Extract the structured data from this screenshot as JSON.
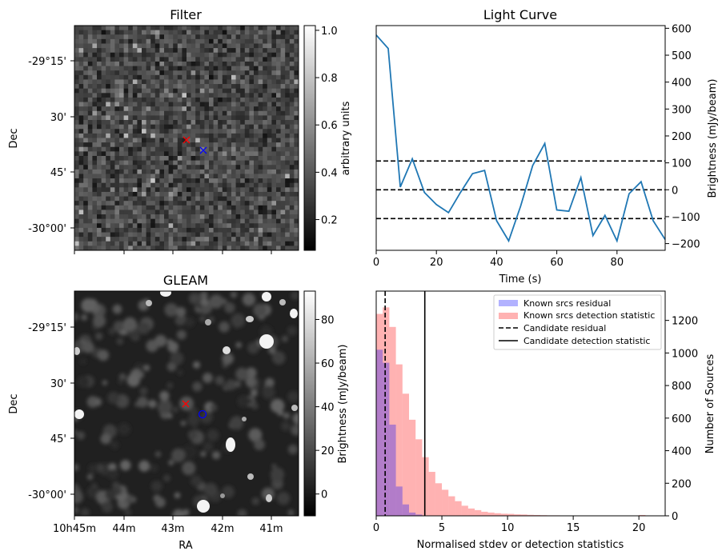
{
  "filter_panel": {
    "title": "Filter",
    "ylabel": "Dec",
    "dec_ticks": [
      "-29°15'",
      "30'",
      "45'",
      "-30°00'"
    ],
    "colorbar": {
      "label": "arbitrary units",
      "ticks": [
        "0.2",
        "0.4",
        "0.6",
        "0.8",
        "1.0"
      ],
      "range": [
        0.07,
        1.02
      ]
    },
    "markers": [
      {
        "symbol": "x",
        "color": "#ff0000"
      },
      {
        "symbol": "x",
        "color": "#0000ff"
      }
    ]
  },
  "gleam_panel": {
    "title": "GLEAM",
    "ylabel": "Dec",
    "xlabel": "RA",
    "dec_ticks": [
      "-29°15'",
      "30'",
      "45'",
      "-30°00'"
    ],
    "ra_ticks": [
      "10h45m",
      "44m",
      "43m",
      "42m",
      "41m"
    ],
    "colorbar": {
      "label": "Brightness (mJy/beam)",
      "ticks": [
        "0",
        "20",
        "40",
        "60",
        "80"
      ],
      "range": [
        -10,
        93
      ]
    },
    "markers": [
      {
        "symbol": "x",
        "color": "#ff0000"
      },
      {
        "symbol": "o",
        "color": "#0000ff"
      }
    ]
  },
  "chart_data": [
    {
      "type": "line",
      "title": "Light Curve",
      "xlabel": "Time (s)",
      "ylabel": "Brightness (mJy/beam)",
      "xlim": [
        0,
        96
      ],
      "ylim": [
        -225,
        610
      ],
      "xticks": [
        0,
        20,
        40,
        60,
        80
      ],
      "yticks": [
        -200,
        -100,
        0,
        100,
        200,
        300,
        400,
        500,
        600
      ],
      "color": "#1f77b4",
      "x": [
        0,
        4,
        8,
        12,
        16,
        20,
        24,
        28,
        32,
        36,
        40,
        44,
        48,
        52,
        56,
        60,
        64,
        68,
        72,
        76,
        80,
        84,
        88,
        92,
        96
      ],
      "y": [
        575,
        525,
        10,
        115,
        -10,
        -55,
        -85,
        -10,
        60,
        72,
        -115,
        -190,
        -60,
        90,
        172,
        -75,
        -80,
        45,
        -170,
        -95,
        -190,
        -15,
        30,
        -115,
        -185
      ],
      "hlines": [
        107,
        0,
        -107
      ]
    },
    {
      "type": "bar",
      "xlabel": "Normalised stdev or detection statistics",
      "ylabel": "Number of Sources",
      "xlim": [
        0,
        22
      ],
      "ylim": [
        0,
        1380
      ],
      "xticks": [
        0,
        5,
        10,
        15,
        20
      ],
      "yticks": [
        0,
        200,
        400,
        600,
        800,
        1000,
        1200
      ],
      "bin_width": 0.5,
      "series": [
        {
          "name": "Known srcs residual",
          "color": "#0000ff",
          "alpha": 0.3,
          "bin_starts": [
            0,
            0.5,
            1.0,
            1.5,
            2.0,
            2.5,
            3.0
          ],
          "values": [
            1020,
            940,
            560,
            180,
            70,
            20,
            8
          ]
        },
        {
          "name": "Known srcs detection statistic",
          "color": "#ff0000",
          "alpha": 0.3,
          "bin_starts": [
            0,
            0.5,
            1.0,
            1.5,
            2.0,
            2.5,
            3.0,
            3.5,
            4.0,
            4.5,
            5.0,
            5.5,
            6.0,
            6.5,
            7.0,
            7.5,
            8.0,
            8.5,
            9.0,
            9.5,
            10.0,
            10.5,
            11.0,
            11.5,
            12.0,
            12.5,
            13.0,
            13.5,
            14.0,
            14.5,
            15.0,
            20.0
          ],
          "values": [
            1240,
            1280,
            1160,
            930,
            750,
            590,
            470,
            360,
            270,
            200,
            160,
            120,
            90,
            62,
            45,
            35,
            25,
            20,
            16,
            13,
            12,
            9,
            8,
            6,
            5,
            4,
            3,
            3,
            2,
            2,
            1,
            5
          ]
        }
      ],
      "vlines": [
        {
          "name": "Candidate residual",
          "x": 0.68,
          "style": "dashed"
        },
        {
          "name": "Candidate detection statistic",
          "x": 3.7,
          "style": "solid"
        }
      ]
    }
  ]
}
